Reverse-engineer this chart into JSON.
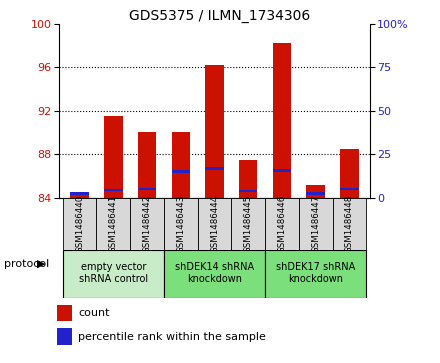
{
  "title": "GDS5375 / ILMN_1734306",
  "samples": [
    "GSM1486440",
    "GSM1486441",
    "GSM1486442",
    "GSM1486443",
    "GSM1486444",
    "GSM1486445",
    "GSM1486446",
    "GSM1486447",
    "GSM1486448"
  ],
  "red_tops": [
    84.5,
    91.5,
    90.0,
    90.0,
    96.2,
    87.5,
    98.2,
    85.2,
    88.5
  ],
  "blue_positions": [
    84.3,
    84.6,
    84.7,
    86.3,
    86.6,
    84.5,
    86.4,
    84.3,
    84.7
  ],
  "bar_base": 84.0,
  "ylim_left": [
    84,
    100
  ],
  "ylim_right": [
    0,
    100
  ],
  "yticks_left": [
    84,
    88,
    92,
    96,
    100
  ],
  "yticks_right": [
    0,
    25,
    50,
    75,
    100
  ],
  "right_tick_labels": [
    "0",
    "25",
    "50",
    "75",
    "100%"
  ],
  "protocols": [
    {
      "label": "empty vector\nshRNA control",
      "start": 0,
      "end": 3,
      "color": "#c8ebc8"
    },
    {
      "label": "shDEK14 shRNA\nknockdown",
      "start": 3,
      "end": 6,
      "color": "#7be07b"
    },
    {
      "label": "shDEK17 shRNA\nknockdown",
      "start": 6,
      "end": 9,
      "color": "#7be07b"
    }
  ],
  "bar_color": "#cc1100",
  "blue_color": "#2222cc",
  "bar_width": 0.55,
  "bg_color": "#ffffff",
  "tick_label_color_left": "#cc1100",
  "tick_label_color_right": "#2222cc",
  "cell_color": "#d8d8d8",
  "grid_ticks": [
    88,
    92,
    96
  ]
}
